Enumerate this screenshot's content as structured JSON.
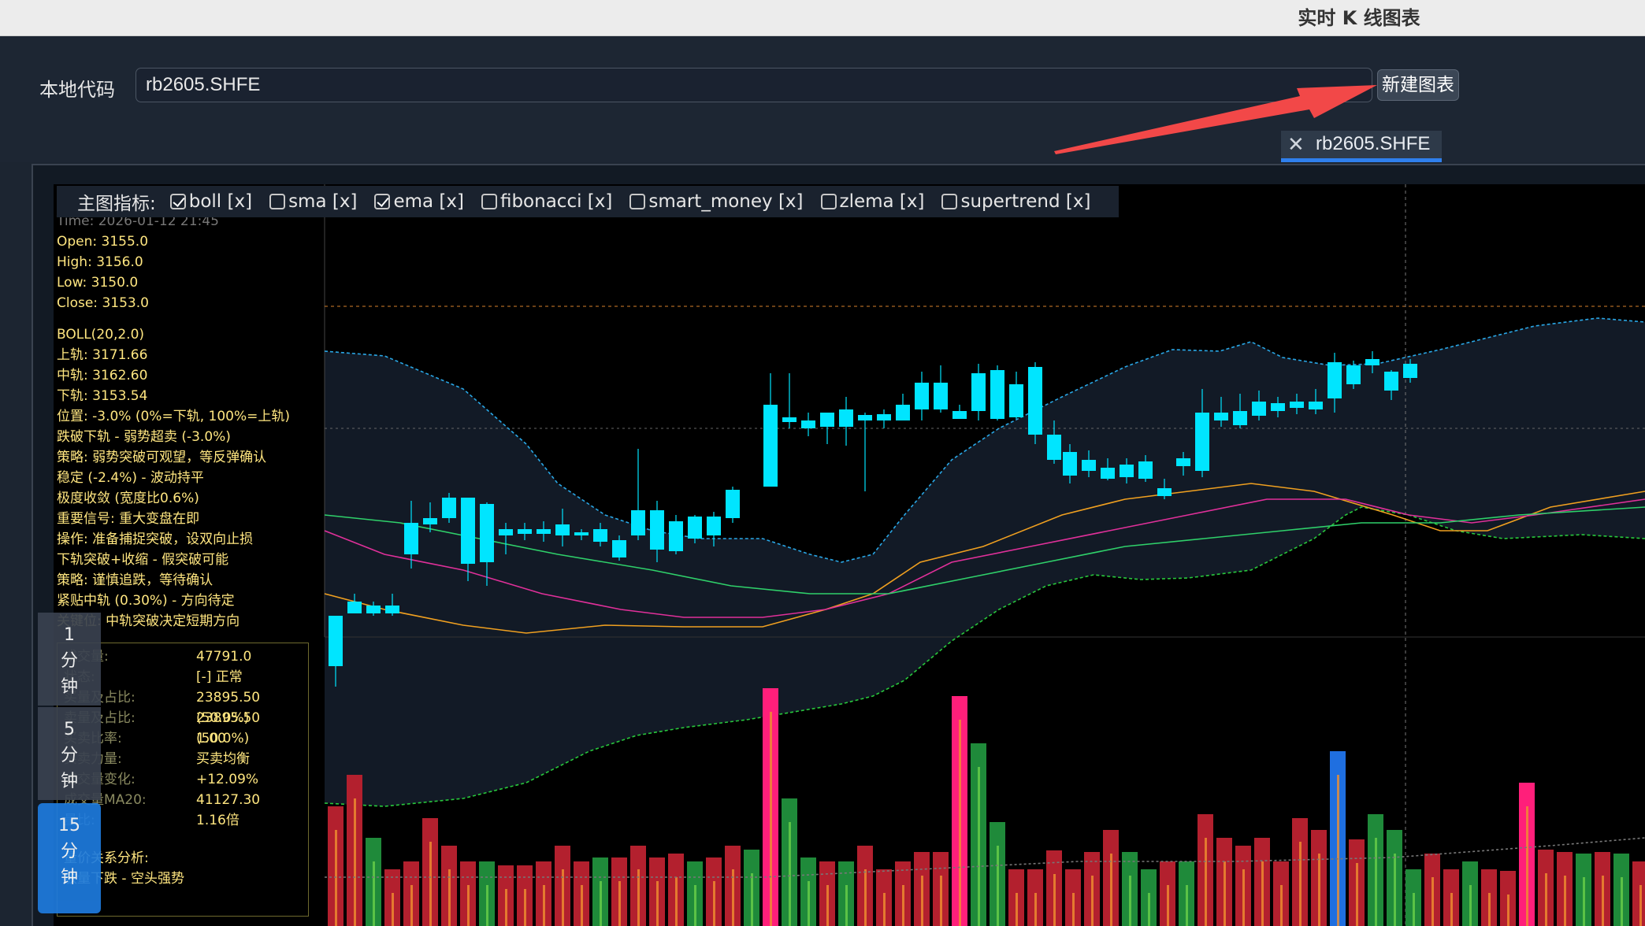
{
  "window": {
    "title": "实时 K 线图表",
    "colors": {
      "close": "#fe5f57",
      "minimize": "#febc2e",
      "zoom": "#28c840"
    }
  },
  "toolbar": {
    "code_label": "本地代码",
    "code_value": "rb2605.SHFE",
    "new_chart_label": "新建图表"
  },
  "tab": {
    "close_icon": "close-icon",
    "label": "rb2605.SHFE"
  },
  "indicators": {
    "title": "主图指标:",
    "items": [
      {
        "label": "boll [x]",
        "checked": true
      },
      {
        "label": "sma [x]",
        "checked": false
      },
      {
        "label": "ema [x]",
        "checked": true
      },
      {
        "label": "fibonacci [x]",
        "checked": false
      },
      {
        "label": "smart_money [x]",
        "checked": false
      },
      {
        "label": "zlema [x]",
        "checked": false
      },
      {
        "label": "supertrend [x]",
        "checked": false
      }
    ]
  },
  "info": {
    "time": "Time: 2026-01-12 21:45",
    "open": "Open: 3155.0",
    "high": "High: 3156.0",
    "low": "Low: 3150.0",
    "close": "Close: 3153.0",
    "boll_title": "BOLL(20,2.0)",
    "lines": [
      "上轨: 3171.66",
      "中轨: 3162.60",
      "下轨: 3153.54",
      "位置: -3.0% (0%=下轨, 100%=上轨)",
      "跌破下轨 - 弱势超卖 (-3.0%)",
      "策略: 弱势突破可观望，等反弹确认",
      "稳定 (-2.4%) - 波动持平",
      "极度收敛 (宽度比0.6%)",
      "重要信号: 重大变盘在即",
      "操作: 准备捕捉突破，设双向止损",
      "下轨突破+收缩 - 假突破可能",
      "策略: 谨慎追跌，等待确认",
      "紧贴中轨 (0.30%) - 方向待定",
      "关键位: 中轨突破决定短期方向"
    ]
  },
  "volume_info": {
    "rows": [
      {
        "k": "成交量:",
        "v": "47791.0"
      },
      {
        "k": "状态:",
        "v": "[-] 正常"
      },
      {
        "k": "买量及占比:",
        "v": "23895.50 (50.0%)"
      },
      {
        "k": "卖量及占比:",
        "v": "23895.50 (50.0%)"
      },
      {
        "k": "买卖比率:",
        "v": "1.00"
      },
      {
        "k": "买卖力量:",
        "v": "买卖均衡"
      },
      {
        "k": "成交量变化:",
        "v": "+12.09%"
      },
      {
        "k": "成交量MA20:",
        "v": "41127.30"
      },
      {
        "k": "量比:",
        "v": "1.16倍"
      }
    ],
    "section_title": "量价关系分析:",
    "section_line": "放量下跌 - 空头强势"
  },
  "periods": [
    {
      "label": "1\n分\n钟",
      "active": false
    },
    {
      "label": "5\n分\n钟",
      "active": false
    },
    {
      "label": "15\n分\n钟",
      "active": true
    }
  ],
  "colors": {
    "up": "#ff3b5c",
    "down": "#00e5ff",
    "vol_up": "#b3202e",
    "vol_down": "#1f8a3a",
    "boll_upper": "#29a7e6",
    "boll_lower": "#28c83c",
    "ema_fast": "#f0a020",
    "ema_mid": "#e0309a",
    "ema_slow": "#2fd06a"
  }
}
